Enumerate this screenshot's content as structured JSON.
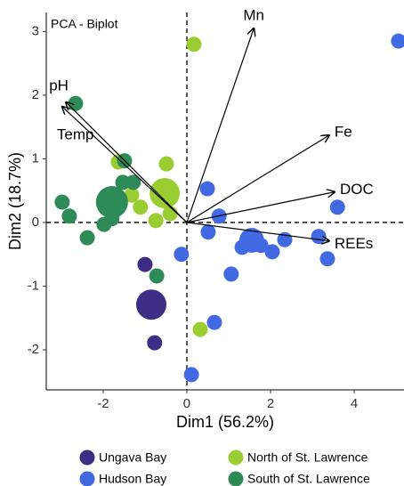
{
  "chart_data": {
    "type": "scatter",
    "title": "PCA - Biplot",
    "x_label": "Dim1 (56.2%)",
    "y_label": "Dim2 (18.7%)",
    "xlim": [
      -3.36,
      5.19
    ],
    "ylim": [
      -2.63,
      3.3
    ],
    "xticks": [
      -2,
      0,
      2,
      4
    ],
    "yticks": [
      -2,
      -1,
      0,
      1,
      2,
      3
    ],
    "series": [
      {
        "name": "Ungava Bay",
        "color": "#3d2d85",
        "x": [
          -1.0,
          -0.85,
          -0.77
        ],
        "y": [
          -0.66,
          -1.29,
          -1.89
        ],
        "sizes": [
          1,
          4,
          1
        ]
      },
      {
        "name": "Hudson Bay",
        "color": "#4169e1",
        "x": [
          5.06,
          0.49,
          0.77,
          0.51,
          -0.13,
          1.55,
          1.32,
          1.77,
          2.04,
          2.34,
          3.15,
          3.6,
          3.36,
          1.06,
          0.66,
          0.11
        ],
        "y": [
          2.85,
          0.53,
          0.1,
          -0.15,
          -0.5,
          -0.28,
          -0.39,
          -0.36,
          -0.46,
          -0.27,
          -0.22,
          0.24,
          -0.57,
          -0.81,
          -1.57,
          -2.39
        ],
        "sizes": [
          1,
          1,
          1,
          1,
          1,
          2.7,
          1,
          1,
          1,
          1,
          1,
          1,
          1,
          1,
          1,
          1
        ]
      },
      {
        "name": "North of St. Lawrence",
        "color": "#9acd32",
        "x": [
          0.17,
          -0.49,
          -0.53,
          -1.32,
          -1.11,
          -0.74,
          -0.4,
          0.32,
          -1.64
        ],
        "y": [
          2.8,
          0.92,
          0.46,
          0.43,
          0.24,
          0.03,
          0.14,
          -1.68,
          0.95
        ],
        "sizes": [
          1,
          1,
          4,
          1,
          1,
          1,
          1,
          1,
          1
        ]
      },
      {
        "name": "South of St. Lawrence",
        "color": "#2e8b57",
        "x": [
          -2.66,
          -1.49,
          -1.28,
          -1.53,
          -1.79,
          -1.79,
          -2.98,
          -2.81,
          -2.38,
          -1.98,
          -0.72
        ],
        "y": [
          1.87,
          0.97,
          0.63,
          0.63,
          0.32,
          0.06,
          0.32,
          0.1,
          -0.24,
          -0.03,
          -0.84
        ],
        "sizes": [
          1,
          1,
          1,
          1,
          4.5,
          1,
          1,
          1,
          1,
          1,
          1
        ]
      }
    ],
    "loadings": {
      "labels": [
        "Mn",
        "Fe",
        "DOC",
        "REEs",
        "pH",
        "Temp"
      ],
      "x": [
        1.6,
        3.4,
        3.53,
        3.4,
        -2.89,
        -2.98
      ],
      "y": [
        3.05,
        1.37,
        0.48,
        -0.29,
        1.89,
        1.82
      ]
    }
  }
}
